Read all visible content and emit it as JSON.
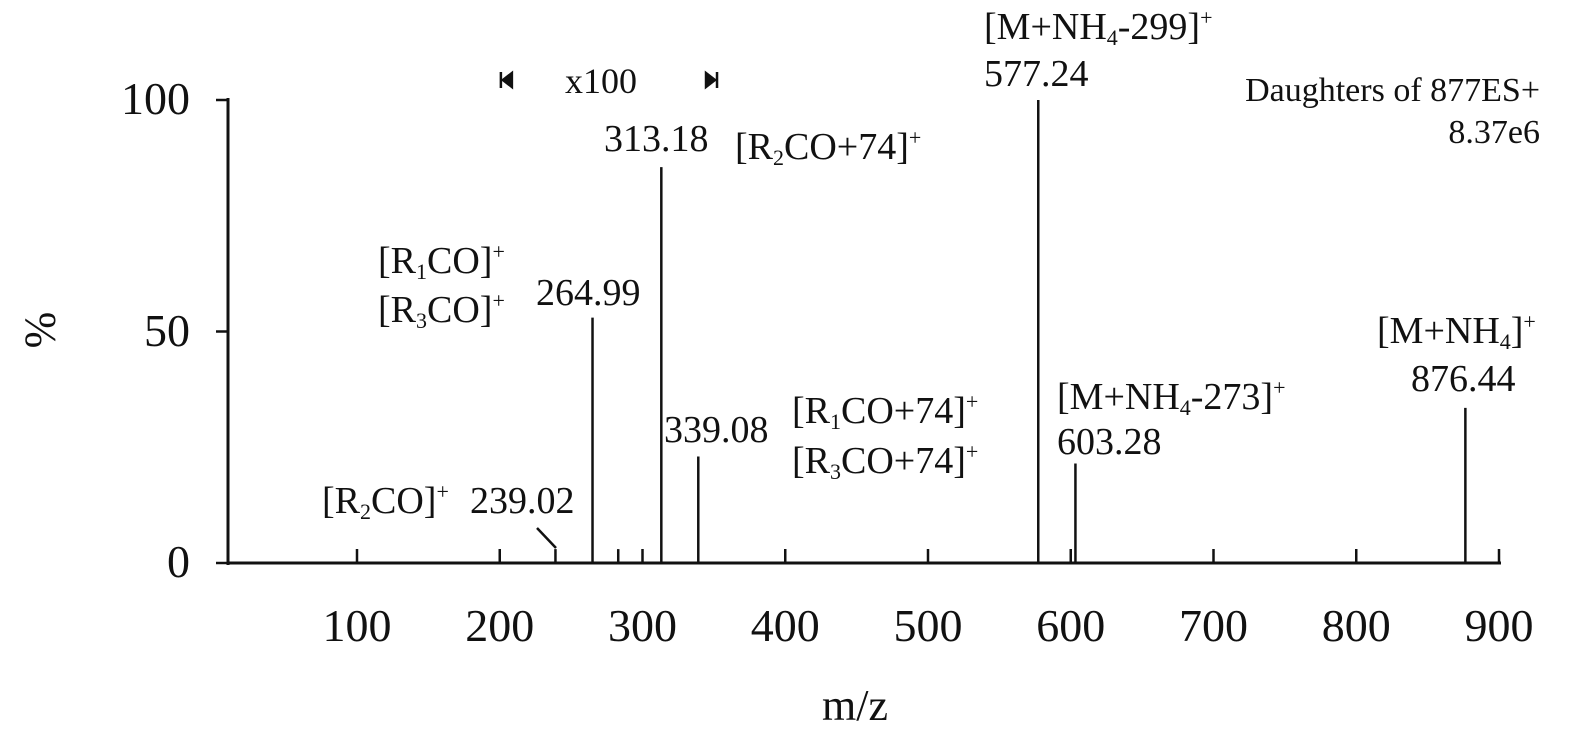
{
  "chart_data": {
    "type": "bar",
    "title": "",
    "xlabel": "m/z",
    "ylabel": "%",
    "xlim": [
      10,
      900
    ],
    "ylim": [
      0,
      100
    ],
    "xticks": [
      100,
      200,
      300,
      400,
      500,
      600,
      700,
      800,
      900
    ],
    "yticks": [
      0,
      50,
      100
    ],
    "grid": false,
    "header": {
      "line1": "Daughters of 877ES+",
      "line2": "8.37e6"
    },
    "magnification": {
      "label": "x100",
      "range": [
        205,
        348
      ]
    },
    "peaks": [
      {
        "mz": 239.02,
        "intensity": 3,
        "label": "239.02"
      },
      {
        "mz": 264.99,
        "intensity": 53,
        "label": "264.99"
      },
      {
        "mz": 283,
        "intensity": 3,
        "label": ""
      },
      {
        "mz": 313.18,
        "intensity": 85.5,
        "label": "313.18"
      },
      {
        "mz": 339.08,
        "intensity": 23,
        "label": "339.08"
      },
      {
        "mz": 577.24,
        "intensity": 100,
        "label": "577.24"
      },
      {
        "mz": 603.28,
        "intensity": 21.5,
        "label": "603.28"
      },
      {
        "mz": 876.44,
        "intensity": 33.5,
        "label": "876.44"
      }
    ],
    "annotations": {
      "r2co": {
        "pre": "[R",
        "sub": "2",
        "post": "CO]",
        "sup": "+"
      },
      "r1co": {
        "pre": "[R",
        "sub": "1",
        "post": "CO]",
        "sup": "+"
      },
      "r3co": {
        "pre": "[R",
        "sub": "3",
        "post": "CO]",
        "sup": "+"
      },
      "r2co74": {
        "pre": "[R",
        "sub": "2",
        "post": "CO+74]",
        "sup": "+"
      },
      "r1co74": {
        "pre": "[R",
        "sub": "1",
        "post": "CO+74]",
        "sup": "+"
      },
      "r3co74": {
        "pre": "[R",
        "sub": "3",
        "post": "CO+74]",
        "sup": "+"
      },
      "m299": {
        "pre": "[M+NH",
        "sub": "4",
        "post": "-299]",
        "sup": "+"
      },
      "m273": {
        "pre": "[M+NH",
        "sub": "4",
        "post": "-273]",
        "sup": "+"
      },
      "mnh4": {
        "pre": "[M+NH",
        "sub": "4",
        "post": "]",
        "sup": "+"
      }
    }
  }
}
